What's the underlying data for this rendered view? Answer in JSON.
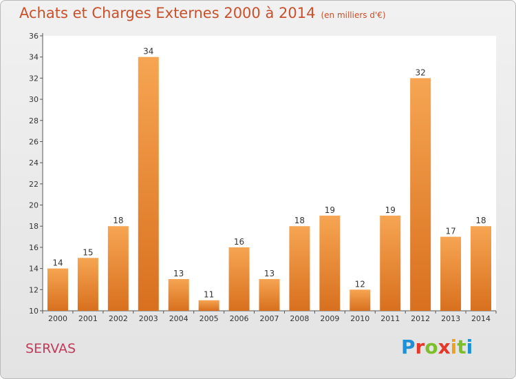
{
  "header": {
    "title": "Achats et Charges Externes 2000 à 2014",
    "subtitle": "(en milliers d'€)"
  },
  "footer": {
    "commune": "SERVAS",
    "logo": "Proxiti"
  },
  "colors": {
    "title": "#c8502a",
    "commune": "#c23a5a",
    "bar_light": "#f6a552",
    "bar_dark": "#d8701e",
    "logo": [
      "#1e90d6",
      "#e6372b",
      "#7cbf2a",
      "#e6372b",
      "#f0a020",
      "#7cbf2a",
      "#1e90d6"
    ]
  },
  "chart_data": {
    "type": "bar",
    "categories": [
      "2000",
      "2001",
      "2002",
      "2003",
      "2004",
      "2005",
      "2006",
      "2007",
      "2008",
      "2009",
      "2010",
      "2011",
      "2012",
      "2013",
      "2014"
    ],
    "values": [
      14,
      15,
      18,
      34,
      13,
      11,
      16,
      13,
      18,
      19,
      12,
      19,
      32,
      17,
      18
    ],
    "ylim": [
      10,
      36
    ],
    "yticks": [
      10,
      12,
      14,
      16,
      18,
      20,
      22,
      24,
      26,
      28,
      30,
      32,
      34,
      36
    ],
    "grid": false,
    "legend": "none"
  }
}
